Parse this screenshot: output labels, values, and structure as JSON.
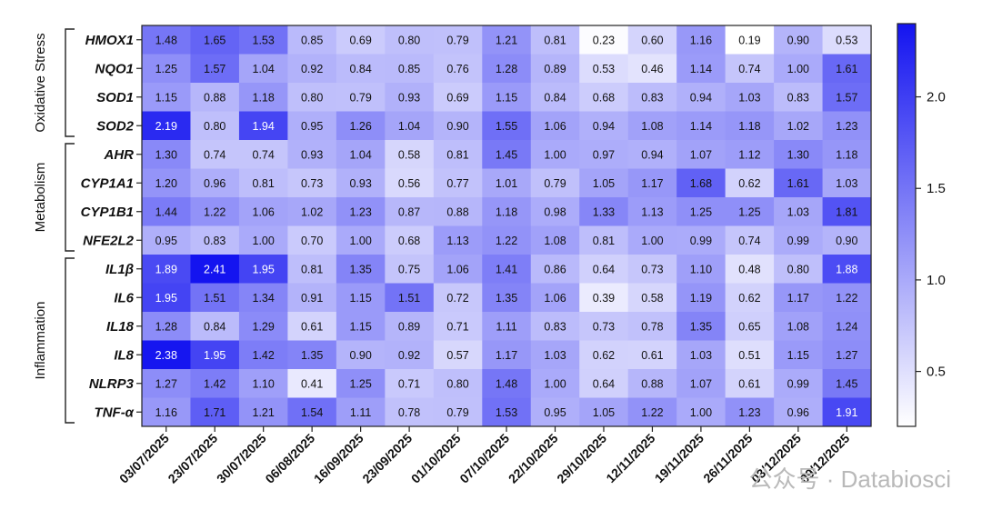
{
  "chart_data": {
    "type": "heatmap",
    "rows": [
      "HMOX1",
      "NQO1",
      "SOD1",
      "SOD2",
      "AHR",
      "CYP1A1",
      "CYP1B1",
      "NFE2L2",
      "IL1β",
      "IL6",
      "IL18",
      "IL8",
      "NLRP3",
      "TNF-α"
    ],
    "columns": [
      "03/07/2025",
      "23/07/2025",
      "30/07/2025",
      "06/08/2025",
      "16/09/2025",
      "23/09/2025",
      "01/10/2025",
      "07/10/2025",
      "22/10/2025",
      "29/10/2025",
      "12/11/2025",
      "19/11/2025",
      "26/11/2025",
      "03/12/2025",
      "09/12/2025"
    ],
    "values": [
      [
        1.48,
        1.65,
        1.53,
        0.85,
        0.69,
        0.8,
        0.79,
        1.21,
        0.81,
        0.23,
        0.6,
        1.16,
        0.19,
        0.9,
        0.53
      ],
      [
        1.25,
        1.57,
        1.04,
        0.92,
        0.84,
        0.85,
        0.76,
        1.28,
        0.89,
        0.53,
        0.46,
        1.14,
        0.74,
        1.0,
        1.61
      ],
      [
        1.15,
        0.88,
        1.18,
        0.8,
        0.79,
        0.93,
        0.69,
        1.15,
        0.84,
        0.68,
        0.83,
        0.94,
        1.03,
        0.83,
        1.57
      ],
      [
        2.19,
        0.8,
        1.94,
        0.95,
        1.26,
        1.04,
        0.9,
        1.55,
        1.06,
        0.94,
        1.08,
        1.14,
        1.18,
        1.02,
        1.23
      ],
      [
        1.3,
        0.74,
        0.74,
        0.93,
        1.04,
        0.58,
        0.81,
        1.45,
        1.0,
        0.97,
        0.94,
        1.07,
        1.12,
        1.3,
        1.18
      ],
      [
        1.2,
        0.96,
        0.81,
        0.73,
        0.93,
        0.56,
        0.77,
        1.01,
        0.79,
        1.05,
        1.17,
        1.68,
        0.62,
        1.61,
        1.03
      ],
      [
        1.44,
        1.22,
        1.06,
        1.02,
        1.23,
        0.87,
        0.88,
        1.18,
        0.98,
        1.33,
        1.13,
        1.25,
        1.25,
        1.03,
        1.81
      ],
      [
        0.95,
        0.83,
        1.0,
        0.7,
        1.0,
        0.68,
        1.13,
        1.22,
        1.08,
        0.81,
        1.0,
        0.99,
        0.74,
        0.99,
        0.9
      ],
      [
        1.89,
        2.41,
        1.95,
        0.81,
        1.35,
        0.75,
        1.06,
        1.41,
        0.86,
        0.64,
        0.73,
        1.1,
        0.48,
        0.8,
        1.88
      ],
      [
        1.95,
        1.51,
        1.34,
        0.91,
        1.15,
        1.51,
        0.72,
        1.35,
        1.06,
        0.39,
        0.58,
        1.19,
        0.62,
        1.17,
        1.22
      ],
      [
        1.28,
        0.84,
        1.29,
        0.61,
        1.15,
        0.89,
        0.71,
        1.11,
        0.83,
        0.73,
        0.78,
        1.35,
        0.65,
        1.08,
        1.24
      ],
      [
        2.38,
        1.95,
        1.42,
        1.35,
        0.9,
        0.92,
        0.57,
        1.17,
        1.03,
        0.62,
        0.61,
        1.03,
        0.51,
        1.15,
        1.27
      ],
      [
        1.27,
        1.42,
        1.1,
        0.41,
        1.25,
        0.71,
        0.8,
        1.48,
        1.0,
        0.64,
        0.88,
        1.07,
        0.61,
        0.99,
        1.45
      ],
      [
        1.16,
        1.71,
        1.21,
        1.54,
        1.11,
        0.78,
        0.79,
        1.53,
        0.95,
        1.05,
        1.22,
        1.0,
        1.23,
        0.96,
        1.91
      ]
    ],
    "row_groups": [
      {
        "label": "Oxidative Stress",
        "from": 0,
        "to": 3
      },
      {
        "label": "Metabolism",
        "from": 4,
        "to": 7
      },
      {
        "label": "Inflammation",
        "from": 8,
        "to": 13
      }
    ],
    "colorbar": {
      "min": 0.2,
      "max": 2.4,
      "ticks": [
        "0.5",
        "1.0",
        "1.5",
        "2.0"
      ],
      "low_color": "#ffffff",
      "high_color": "#1414f0"
    },
    "watermark": "公众号 · Databiosci"
  }
}
